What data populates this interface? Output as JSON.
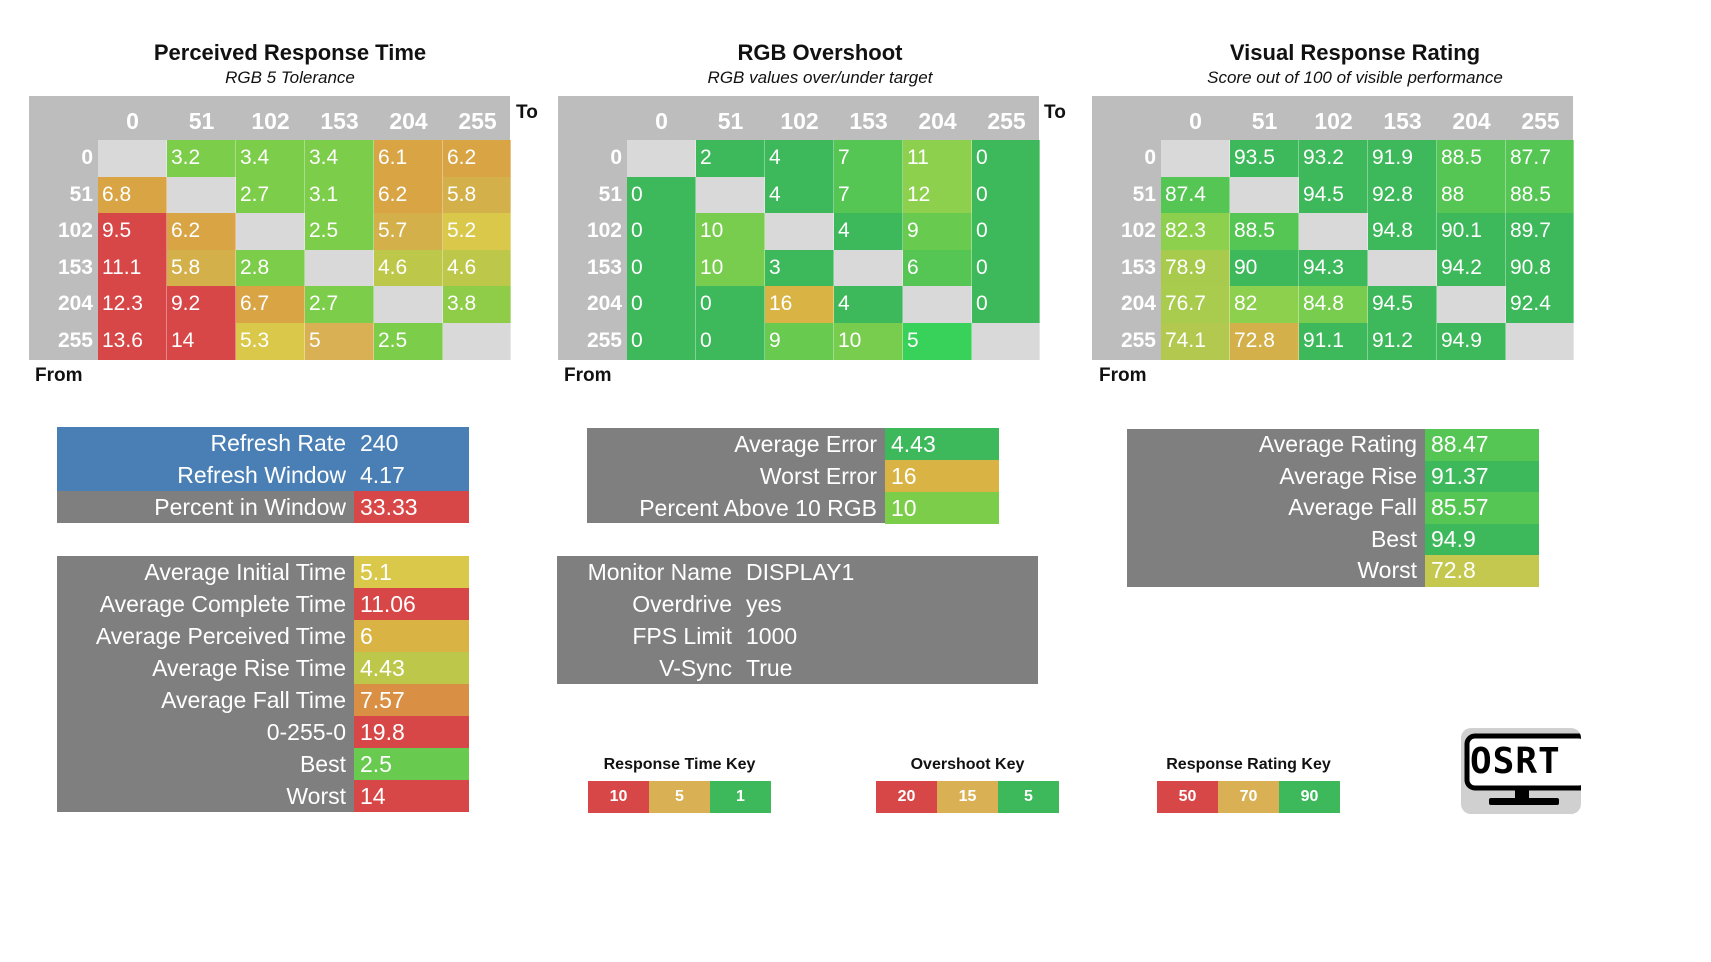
{
  "chart_data": [
    {
      "type": "heatmap",
      "title": "Perceived Response Time",
      "subtitle": "RGB 5 Tolerance",
      "xlabel": "To",
      "ylabel": "From",
      "x": [
        "0",
        "51",
        "102",
        "153",
        "204",
        "255"
      ],
      "y": [
        "0",
        "51",
        "102",
        "153",
        "204",
        "255"
      ],
      "values": [
        [
          null,
          3.2,
          3.4,
          3.4,
          6.1,
          6.2
        ],
        [
          6.8,
          null,
          2.7,
          3.1,
          6.2,
          5.8
        ],
        [
          9.5,
          6.2,
          null,
          2.5,
          5.7,
          5.2
        ],
        [
          11.1,
          5.8,
          2.8,
          null,
          4.6,
          4.6
        ],
        [
          12.3,
          9.2,
          6.7,
          2.7,
          null,
          3.8
        ],
        [
          13.6,
          14,
          5.3,
          5,
          2.5,
          null
        ]
      ],
      "colors": [
        [
          null,
          "#7ccd49",
          "#7ccd49",
          "#7ccd49",
          "#d9a444",
          "#d9a444"
        ],
        [
          null,
          null,
          "#7ccd49",
          "#7ccd49",
          "#d9a444",
          "#d3b04a"
        ],
        [
          "#d84747",
          "#d9a444",
          null,
          "#7ccd49",
          "#d3b04a",
          "#d9c84a"
        ],
        [
          "#d84747",
          "#d3b04a",
          "#7ccd49",
          null,
          "#bdc84a",
          "#bdc84a"
        ],
        [
          "#d84747",
          "#d84747",
          "#d9a444",
          "#7ccd49",
          null,
          "#8fcd49"
        ],
        [
          "#d84747",
          "#d84747",
          "#d9c84a",
          "#d9b054",
          "#7ccd49",
          null
        ]
      ]
    },
    {
      "type": "heatmap",
      "title": "RGB Overshoot",
      "subtitle": "RGB values over/under target",
      "xlabel": "To",
      "ylabel": "From",
      "x": [
        "0",
        "51",
        "102",
        "153",
        "204",
        "255"
      ],
      "y": [
        "0",
        "51",
        "102",
        "153",
        "204",
        "255"
      ],
      "values": [
        [
          null,
          2,
          4,
          7,
          11,
          0
        ],
        [
          0,
          null,
          4,
          7,
          12,
          0
        ],
        [
          0,
          10,
          null,
          4,
          9,
          0
        ],
        [
          0,
          10,
          3,
          null,
          6,
          0
        ],
        [
          0,
          0,
          16,
          4,
          null,
          0
        ],
        [
          0,
          0,
          9,
          10,
          5,
          null
        ]
      ],
      "colors": [
        [
          null,
          "#3db85a",
          "#3db85a",
          "#55c553",
          "#8cd04e",
          "#3db85a"
        ],
        [
          "#3db85a",
          null,
          "#3db85a",
          "#55c553",
          "#8cd04e",
          "#3db85a"
        ],
        [
          "#3db85a",
          "#78cc4e",
          null,
          "#3db85a",
          "#68ca4e",
          "#3db85a"
        ],
        [
          "#3db85a",
          "#78cc4e",
          "#3db85a",
          null,
          "#55c553",
          "#3db85a"
        ],
        [
          "#3db85a",
          "#3db85a",
          "#d9b444",
          "#3db85a",
          null,
          "#3db85a"
        ],
        [
          "#3db85a",
          "#3db85a",
          "#68ca4e",
          "#78cc4e",
          "#38d15a",
          null
        ]
      ]
    },
    {
      "type": "heatmap",
      "title": "Visual Response Rating",
      "subtitle": "Score out of 100 of visible performance",
      "xlabel": "",
      "ylabel": "From",
      "x": [
        "0",
        "51",
        "102",
        "153",
        "204",
        "255"
      ],
      "y": [
        "0",
        "51",
        "102",
        "153",
        "204",
        "255"
      ],
      "values": [
        [
          null,
          93.5,
          93.2,
          91.9,
          88.5,
          87.7
        ],
        [
          87.4,
          null,
          94.5,
          92.8,
          88,
          88.5
        ],
        [
          82.3,
          88.5,
          null,
          94.8,
          90.1,
          89.7
        ],
        [
          78.9,
          90,
          94.3,
          null,
          94.2,
          90.8
        ],
        [
          76.7,
          82,
          84.8,
          94.5,
          null,
          92.4
        ],
        [
          74.1,
          72.8,
          91.1,
          91.2,
          94.9,
          null
        ]
      ],
      "colors": [
        [
          null,
          "#3db85a",
          "#3db85a",
          "#3db85a",
          "#55c553",
          "#55c553"
        ],
        [
          "#55c553",
          null,
          "#3db85a",
          "#3db85a",
          "#55c553",
          "#55c553"
        ],
        [
          "#8cd04e",
          "#55c553",
          null,
          "#3db85a",
          "#3db85a",
          "#3db85a"
        ],
        [
          "#a8cb4e",
          "#3db85a",
          "#3db85a",
          null,
          "#3db85a",
          "#3db85a"
        ],
        [
          "#aacc4e",
          "#8cd04e",
          "#78cc4e",
          "#3db85a",
          null,
          "#3db85a"
        ],
        [
          "#b3c84e",
          "#d3b04a",
          "#3db85a",
          "#3db85a",
          "#3db85a",
          null
        ]
      ]
    }
  ],
  "to_label": "To",
  "from_label": "From",
  "refresh": [
    {
      "label": "Refresh Rate",
      "value": "240",
      "bg": "#4a7fb5",
      "vbg": "#4a7fb5"
    },
    {
      "label": "Refresh Window",
      "value": "4.17",
      "bg": "#4a7fb5",
      "vbg": "#4a7fb5"
    },
    {
      "label": "Percent in Window",
      "value": "33.33",
      "bg": "#7f7f7f",
      "vbg": "#d84747"
    }
  ],
  "times": [
    {
      "label": "Average Initial Time",
      "value": "5.1",
      "vbg": "#d9c84a"
    },
    {
      "label": "Average Complete Time",
      "value": "11.06",
      "vbg": "#d84747"
    },
    {
      "label": "Average Perceived Time",
      "value": "6",
      "vbg": "#d9b444"
    },
    {
      "label": "Average Rise Time",
      "value": "4.43",
      "vbg": "#bdc84a"
    },
    {
      "label": "Average Fall Time",
      "value": "7.57",
      "vbg": "#d98f44"
    },
    {
      "label": "0-255-0",
      "value": "19.8",
      "vbg": "#d84747"
    },
    {
      "label": "Best",
      "value": "2.5",
      "vbg": "#68ca4e"
    },
    {
      "label": "Worst",
      "value": "14",
      "vbg": "#d84747"
    }
  ],
  "overshoot_stats": [
    {
      "label": "Average Error",
      "value": "4.43",
      "vbg": "#3db85a"
    },
    {
      "label": "Worst Error",
      "value": "16",
      "vbg": "#d9b444"
    },
    {
      "label": "Percent Above 10 RGB",
      "value": "10",
      "vbg": "#7ccd49"
    }
  ],
  "monitor": [
    {
      "label": "Monitor Name",
      "value": "DISPLAY1"
    },
    {
      "label": "Overdrive",
      "value": "yes"
    },
    {
      "label": "FPS Limit",
      "value": "1000"
    },
    {
      "label": "V-Sync",
      "value": "True"
    }
  ],
  "rating_stats": [
    {
      "label": "Average Rating",
      "value": "88.47",
      "vbg": "#55c553"
    },
    {
      "label": "Average Rise",
      "value": "91.37",
      "vbg": "#3db85a"
    },
    {
      "label": "Average Fall",
      "value": "85.57",
      "vbg": "#55c553"
    },
    {
      "label": "Best",
      "value": "94.9",
      "vbg": "#3db85a"
    },
    {
      "label": "Worst",
      "value": "72.8",
      "vbg": "#c4c84e"
    }
  ],
  "keys": [
    {
      "title": "Response Time Key",
      "items": [
        {
          "label": "10",
          "bg": "#d84747"
        },
        {
          "label": "5",
          "bg": "#d9b054"
        },
        {
          "label": "1",
          "bg": "#3db85a"
        }
      ]
    },
    {
      "title": "Overshoot Key",
      "items": [
        {
          "label": "20",
          "bg": "#d84747"
        },
        {
          "label": "15",
          "bg": "#d9b054"
        },
        {
          "label": "5",
          "bg": "#3db85a"
        }
      ]
    },
    {
      "title": "Response Rating Key",
      "items": [
        {
          "label": "50",
          "bg": "#d84747"
        },
        {
          "label": "70",
          "bg": "#d9b054"
        },
        {
          "label": "90",
          "bg": "#3db85a"
        }
      ]
    }
  ],
  "logo_text": "OSRT",
  "colors": {
    "grey": "#7f7f7f",
    "blank": "#d9d9d9",
    "header": "#bdbdbd"
  }
}
